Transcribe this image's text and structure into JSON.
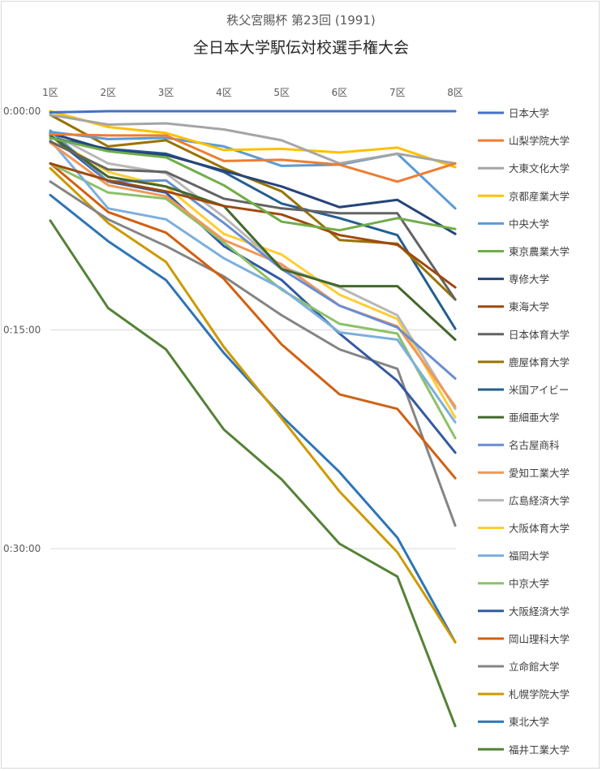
{
  "chart_data": {
    "type": "line",
    "subtitle": "秩父宮賜杯 第23回 (1991)",
    "title": "全日本大学駅伝対校選手権大会",
    "x_labels": [
      "1区",
      "2区",
      "3区",
      "4区",
      "5区",
      "6区",
      "7区",
      "8区"
    ],
    "y_axis": {
      "unit": "seconds behind leader",
      "reversed": true,
      "range": [
        0,
        2400
      ],
      "tick_values": [
        0,
        900,
        1800
      ],
      "tick_labels": [
        "0:00:00",
        "0:15:00",
        "0:30:00"
      ],
      "gridlines": true
    },
    "legend_position": "right",
    "series": [
      {
        "name": "日本大学",
        "color": "#4472c4",
        "values": [
          5,
          0,
          0,
          0,
          0,
          0,
          0,
          0
        ]
      },
      {
        "name": "山梨学院大学",
        "color": "#ed7d31",
        "values": [
          95,
          100,
          100,
          205,
          200,
          220,
          290,
          215
        ]
      },
      {
        "name": "大東文化大学",
        "color": "#a5a5a5",
        "values": [
          15,
          55,
          50,
          75,
          120,
          215,
          175,
          215
        ]
      },
      {
        "name": "京都産業大学",
        "color": "#ffc000",
        "values": [
          0,
          65,
          90,
          160,
          155,
          170,
          150,
          230
        ]
      },
      {
        "name": "中央大学",
        "color": "#5b9bd5",
        "values": [
          85,
          115,
          110,
          145,
          225,
          220,
          175,
          400
        ]
      },
      {
        "name": "東京農業大学",
        "color": "#70ad47",
        "values": [
          110,
          165,
          190,
          305,
          455,
          490,
          440,
          485
        ]
      },
      {
        "name": "専修大学",
        "color": "#264478",
        "values": [
          90,
          160,
          180,
          245,
          310,
          395,
          365,
          505
        ]
      },
      {
        "name": "東海大学",
        "color": "#9e480e",
        "values": [
          215,
          285,
          330,
          390,
          425,
          510,
          550,
          725
        ]
      },
      {
        "name": "日本体育大学",
        "color": "#636363",
        "values": [
          125,
          240,
          250,
          360,
          400,
          420,
          420,
          775
        ]
      },
      {
        "name": "鹿屋体育大学",
        "color": "#997300",
        "values": [
          15,
          145,
          120,
          235,
          330,
          530,
          545,
          775
        ]
      },
      {
        "name": "米国アイビー",
        "color": "#255e91",
        "values": [
          110,
          155,
          175,
          250,
          380,
          440,
          510,
          895
        ]
      },
      {
        "name": "亜細亜大学",
        "color": "#43682b",
        "values": [
          100,
          270,
          310,
          390,
          650,
          720,
          720,
          940
        ]
      },
      {
        "name": "名古屋商科",
        "color": "#698ed0",
        "values": [
          80,
          290,
          285,
          460,
          650,
          800,
          890,
          1100
        ]
      },
      {
        "name": "愛知工業大学",
        "color": "#f1975a",
        "values": [
          130,
          305,
          350,
          530,
          630,
          800,
          885,
          1215
        ]
      },
      {
        "name": "広島経済大学",
        "color": "#b7b7b7",
        "values": [
          90,
          215,
          255,
          435,
          640,
          725,
          840,
          1225
        ]
      },
      {
        "name": "大阪体育大学",
        "color": "#ffcd33",
        "values": [
          105,
          250,
          310,
          505,
          590,
          755,
          855,
          1260
        ]
      },
      {
        "name": "福岡大学",
        "color": "#7cafdd",
        "values": [
          120,
          400,
          445,
          605,
          730,
          910,
          940,
          1280
        ]
      },
      {
        "name": "中京大学",
        "color": "#8cc168",
        "values": [
          215,
          335,
          360,
          540,
          735,
          875,
          915,
          1345
        ]
      },
      {
        "name": "大阪経済大学",
        "color": "#335aa1",
        "values": [
          100,
          290,
          335,
          555,
          695,
          915,
          1110,
          1405
        ]
      },
      {
        "name": "岡山理科大学",
        "color": "#d26012",
        "values": [
          215,
          415,
          500,
          690,
          960,
          1165,
          1225,
          1510
        ]
      },
      {
        "name": "立命館大学",
        "color": "#848484",
        "values": [
          290,
          445,
          555,
          680,
          840,
          980,
          1060,
          1705
        ]
      },
      {
        "name": "札幌学院大学",
        "color": "#cc9a00",
        "values": [
          235,
          460,
          620,
          970,
          1265,
          1565,
          1815,
          2185
        ]
      },
      {
        "name": "東北大学",
        "color": "#2e75b6",
        "values": [
          345,
          535,
          695,
          995,
          1255,
          1485,
          1755,
          2185
        ]
      },
      {
        "name": "福井工業大学",
        "color": "#548235",
        "values": [
          450,
          810,
          980,
          1310,
          1515,
          1780,
          1915,
          2530
        ]
      }
    ]
  }
}
